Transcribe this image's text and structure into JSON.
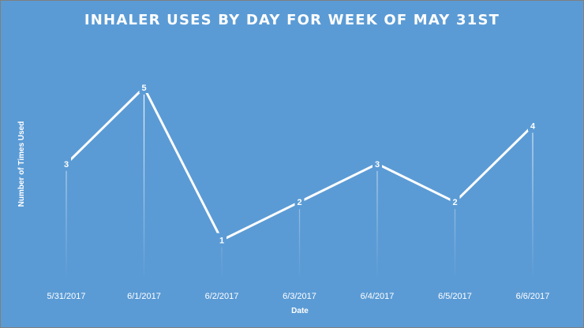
{
  "chart_data": {
    "type": "line",
    "title": "INHALER USES BY DAY FOR WEEK OF MAY 31ST",
    "xlabel": "Date",
    "ylabel": "Number of Times Used",
    "categories": [
      "5/31/2017",
      "6/1/2017",
      "6/2/2017",
      "6/3/2017",
      "6/4/2017",
      "6/5/2017",
      "6/6/2017"
    ],
    "series": [
      {
        "values": [
          3,
          5,
          1,
          2,
          3,
          2,
          4
        ]
      }
    ],
    "data_labels": [
      "3",
      "5",
      "1",
      "2",
      "3",
      "2",
      "4"
    ],
    "ylim": [
      0,
      5
    ],
    "grid": false,
    "legend": "none",
    "drop_lines": true,
    "background_color": "#5b9bd5",
    "line_color": "#ffffff"
  }
}
